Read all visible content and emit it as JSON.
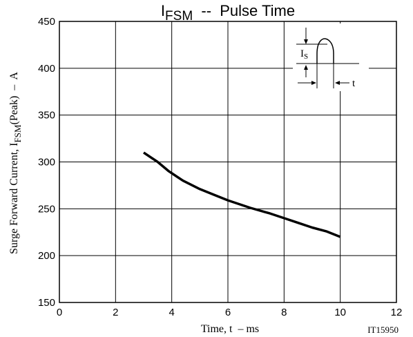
{
  "chart_data": {
    "type": "line",
    "title": {
      "main": "I",
      "sub": "FSM",
      "rest": "  --  Pulse Time"
    },
    "xlabel": "Time, t  – ms",
    "ylabel": {
      "part1": "Surge Forward Current, I",
      "sub": "FSM",
      "part2": "(Peak)  –  A"
    },
    "xlim": [
      0,
      12
    ],
    "ylim": [
      150,
      450
    ],
    "x_ticks": [
      "0",
      "2",
      "4",
      "6",
      "8",
      "10",
      "12"
    ],
    "y_ticks": [
      "150",
      "200",
      "250",
      "300",
      "350",
      "400",
      "450"
    ],
    "grid": true,
    "series": [
      {
        "x": [
          3.0,
          3.5,
          3.9,
          4.4,
          5.0,
          5.5,
          6.0,
          6.8,
          7.5,
          8.0,
          8.5,
          9.0,
          9.5,
          10.0
        ],
        "y": [
          310,
          300,
          290,
          280,
          271,
          265,
          259,
          251,
          245,
          240,
          235,
          230,
          226,
          220
        ]
      }
    ],
    "inset": {
      "current_label": "I",
      "current_sub": "S",
      "time_label": "t"
    },
    "figure_id": "IT15950"
  }
}
